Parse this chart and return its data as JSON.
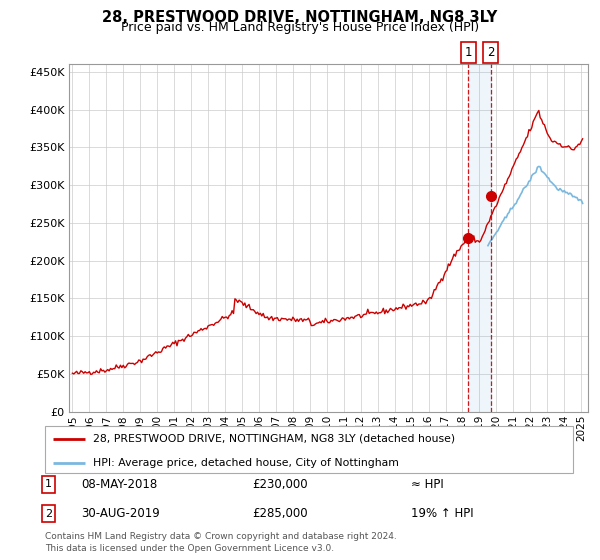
{
  "title": "28, PRESTWOOD DRIVE, NOTTINGHAM, NG8 3LY",
  "subtitle": "Price paid vs. HM Land Registry's House Price Index (HPI)",
  "legend_line1": "28, PRESTWOOD DRIVE, NOTTINGHAM, NG8 3LY (detached house)",
  "legend_line2": "HPI: Average price, detached house, City of Nottingham",
  "annotation1_label": "1",
  "annotation1_date": "08-MAY-2018",
  "annotation1_price": "£230,000",
  "annotation1_hpi": "≈ HPI",
  "annotation2_label": "2",
  "annotation2_date": "30-AUG-2019",
  "annotation2_price": "£285,000",
  "annotation2_hpi": "19% ↑ HPI",
  "footer": "Contains HM Land Registry data © Crown copyright and database right 2024.\nThis data is licensed under the Open Government Licence v3.0.",
  "hpi_color": "#7ab8e0",
  "price_color": "#cc0000",
  "point1_x": 2018.35,
  "point1_y": 230000,
  "point2_x": 2019.66,
  "point2_y": 285000,
  "xlim_left": 1994.8,
  "xlim_right": 2025.4,
  "ylim_bottom": 0,
  "ylim_top": 460000,
  "yticks": [
    0,
    50000,
    100000,
    150000,
    200000,
    250000,
    300000,
    350000,
    400000,
    450000
  ],
  "ytick_labels": [
    "£0",
    "£50K",
    "£100K",
    "£150K",
    "£200K",
    "£250K",
    "£300K",
    "£350K",
    "£400K",
    "£450K"
  ],
  "xtick_years": [
    1995,
    1996,
    1997,
    1998,
    1999,
    2000,
    2001,
    2002,
    2003,
    2004,
    2005,
    2006,
    2007,
    2008,
    2009,
    2010,
    2011,
    2012,
    2013,
    2014,
    2015,
    2016,
    2017,
    2018,
    2019,
    2020,
    2021,
    2022,
    2023,
    2024,
    2025
  ]
}
